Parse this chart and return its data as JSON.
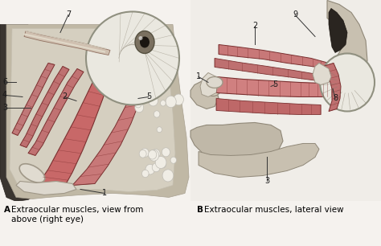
{
  "background_color": "#f5f2ee",
  "caption_a_bold": "A",
  "caption_a_text": "Extraocular muscles, view from\nabove (right eye)",
  "caption_b_bold": "B",
  "caption_b_text": "Extraocular muscles, lateral view",
  "caption_fontsize": 7.5,
  "fig_width": 4.74,
  "fig_height": 3.06,
  "dpi": 100,
  "label_color": "#1a1a1a",
  "muscle_fill": "#c8787a",
  "muscle_edge": "#7a3030",
  "tissue_dark": "#404040",
  "tissue_mid": "#a09888",
  "tissue_light": "#d8d2c8",
  "eyeball_fill": "#e8e5de",
  "line_color": "#333333"
}
